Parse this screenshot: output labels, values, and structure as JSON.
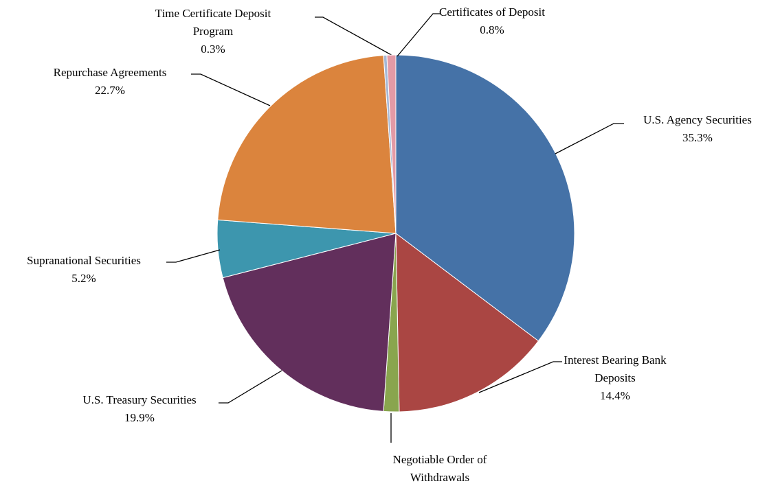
{
  "chart_data": {
    "type": "pie",
    "categories": [
      "U.S. Agency Securities",
      "Interest Bearing Bank Deposits",
      "Negotiable Order of Withdrawals",
      "U.S. Treasury Securities",
      "Supranational Securities",
      "Repurchase Agreements",
      "Time Certificate Deposit Program",
      "Certificates of Deposit"
    ],
    "values": [
      35.3,
      14.4,
      1.4,
      19.9,
      5.2,
      22.7,
      0.3,
      0.8
    ],
    "value_labels": [
      "35.3%",
      "14.4%",
      "1.4%",
      "19.9%",
      "5.2%",
      "22.7%",
      "0.3%",
      "0.8%"
    ],
    "colors": [
      "#4572a7",
      "#aa4643",
      "#89a54e",
      "#622f5c",
      "#3d96ae",
      "#db843d",
      "#a5b8d6",
      "#e39aa6"
    ]
  }
}
